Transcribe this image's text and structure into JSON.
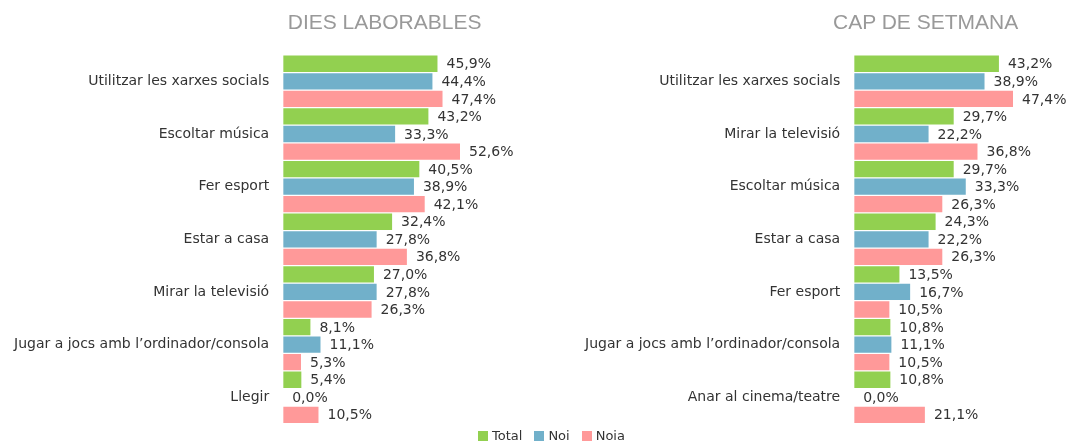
{
  "chart_data": [
    {
      "type": "bar",
      "orientation": "horizontal",
      "title": "DIES LABORABLES",
      "tick_labels": "y",
      "legend": "bottom right",
      "categories": [
        "Utilitzar les xarxes socials",
        "Escoltar música",
        "Fer esport",
        "Estar a casa",
        "Mirar la televisió",
        "Jugar a jocs amb l’ordinador/consola",
        "Llegir"
      ],
      "series": [
        {
          "name": "Total",
          "color": "#92d050",
          "values": [
            45.9,
            43.2,
            40.5,
            32.4,
            27.0,
            8.1,
            5.4
          ],
          "value_labels": [
            "45,9%",
            "43,2%",
            "40,5%",
            "32,4%",
            "27,0%",
            "8,1%",
            "5,4%"
          ]
        },
        {
          "name": "Noi",
          "color": "#71b0ca",
          "values": [
            44.4,
            33.3,
            38.9,
            27.8,
            27.8,
            11.1,
            0.0
          ],
          "value_labels": [
            "44,4%",
            "33,3%",
            "38,9%",
            "27,8%",
            "27,8%",
            "11,1%",
            "0,0%"
          ]
        },
        {
          "name": "Noia",
          "color": "#ff9999",
          "values": [
            47.4,
            52.6,
            42.1,
            36.8,
            26.3,
            5.3,
            10.5
          ],
          "value_labels": [
            "47,4%",
            "52,6%",
            "42,1%",
            "36,8%",
            "26,3%",
            "5,3%",
            "10,5%"
          ]
        }
      ]
    },
    {
      "type": "bar",
      "orientation": "horizontal",
      "title": "CAP DE SETMANA",
      "tick_labels": "y",
      "categories": [
        "Utilitzar les xarxes socials",
        "Mirar la televisió",
        "Escoltar música",
        "Estar a casa",
        "Fer esport",
        "Jugar a jocs amb l’ordinador/consola",
        "Anar al cinema/teatre"
      ],
      "series": [
        {
          "color": "#92d050",
          "values": [
            43.2,
            29.7,
            29.7,
            24.3,
            13.5,
            10.8,
            10.8
          ],
          "value_labels": [
            "43,2%",
            "29,7%",
            "29,7%",
            "24,3%",
            "13,5%",
            "10,8%",
            "10,8%"
          ]
        },
        {
          "color": "#71b0ca",
          "values": [
            38.9,
            22.2,
            33.3,
            22.2,
            16.7,
            11.1,
            0.0
          ],
          "value_labels": [
            "38,9%",
            "22,2%",
            "33,3%",
            "22,2%",
            "16,7%",
            "11,1%",
            "0,0%"
          ]
        },
        {
          "color": "#ff9999",
          "values": [
            47.4,
            36.8,
            26.3,
            26.3,
            10.5,
            10.5,
            21.1
          ],
          "value_labels": [
            "47,4%",
            "36,8%",
            "26,3%",
            "26,3%",
            "10,5%",
            "10,5%",
            "21,1%"
          ]
        }
      ]
    }
  ]
}
